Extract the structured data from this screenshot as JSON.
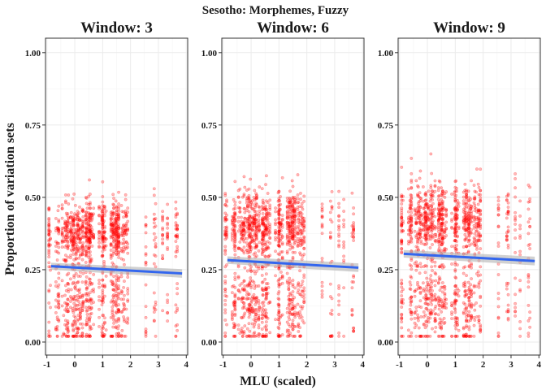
{
  "chart_data": {
    "type": "scatter",
    "title": "Sesotho: Morphemes, Fuzzy",
    "xlabel": "MLU (scaled)",
    "ylabel": "Proportion of variation sets",
    "xlim": [
      -1.05,
      4.05
    ],
    "ylim": [
      -0.045,
      1.05
    ],
    "x_ticks": [
      "-1",
      "0",
      "1",
      "2",
      "3",
      "4"
    ],
    "x_tick_values": [
      -1,
      0,
      1,
      2,
      3,
      4
    ],
    "y_ticks": [
      "0.00",
      "0.25",
      "0.50",
      "0.75",
      "1.00"
    ],
    "y_tick_values": [
      0,
      0.25,
      0.5,
      0.75,
      1.0
    ],
    "grid": true,
    "colors": {
      "points": "#ff0000",
      "trend": "#3366ee",
      "ci_band": "#b3b3b3",
      "grid": "#ebebeb",
      "panel_border": "#333333"
    },
    "panels": [
      {
        "title": "Window: 3",
        "trend": {
          "x": [
            -0.85,
            3.85
          ],
          "y": [
            0.262,
            0.237
          ],
          "ci_low": [
            0.25,
            0.222
          ],
          "ci_high": [
            0.274,
            0.252
          ]
        },
        "clusters": {
          "upper_mean": 0.38,
          "upper_sd": 0.055,
          "lower_mean": 0.12,
          "lower_sd": 0.08,
          "upper_max": 0.59,
          "lower_min": 0.02
        }
      },
      {
        "title": "Window: 6",
        "trend": {
          "x": [
            -0.85,
            3.85
          ],
          "y": [
            0.283,
            0.257
          ],
          "ci_low": [
            0.27,
            0.242
          ],
          "ci_high": [
            0.296,
            0.272
          ]
        },
        "clusters": {
          "upper_mean": 0.4,
          "upper_sd": 0.06,
          "lower_mean": 0.12,
          "lower_sd": 0.08,
          "upper_max": 0.63,
          "lower_min": 0.02
        }
      },
      {
        "title": "Window: 9",
        "trend": {
          "x": [
            -0.85,
            3.85
          ],
          "y": [
            0.305,
            0.28
          ],
          "ci_low": [
            0.292,
            0.265
          ],
          "ci_high": [
            0.318,
            0.295
          ]
        },
        "clusters": {
          "upper_mean": 0.42,
          "upper_sd": 0.065,
          "lower_mean": 0.13,
          "lower_sd": 0.08,
          "upper_max": 0.65,
          "lower_min": 0.02
        }
      }
    ]
  }
}
